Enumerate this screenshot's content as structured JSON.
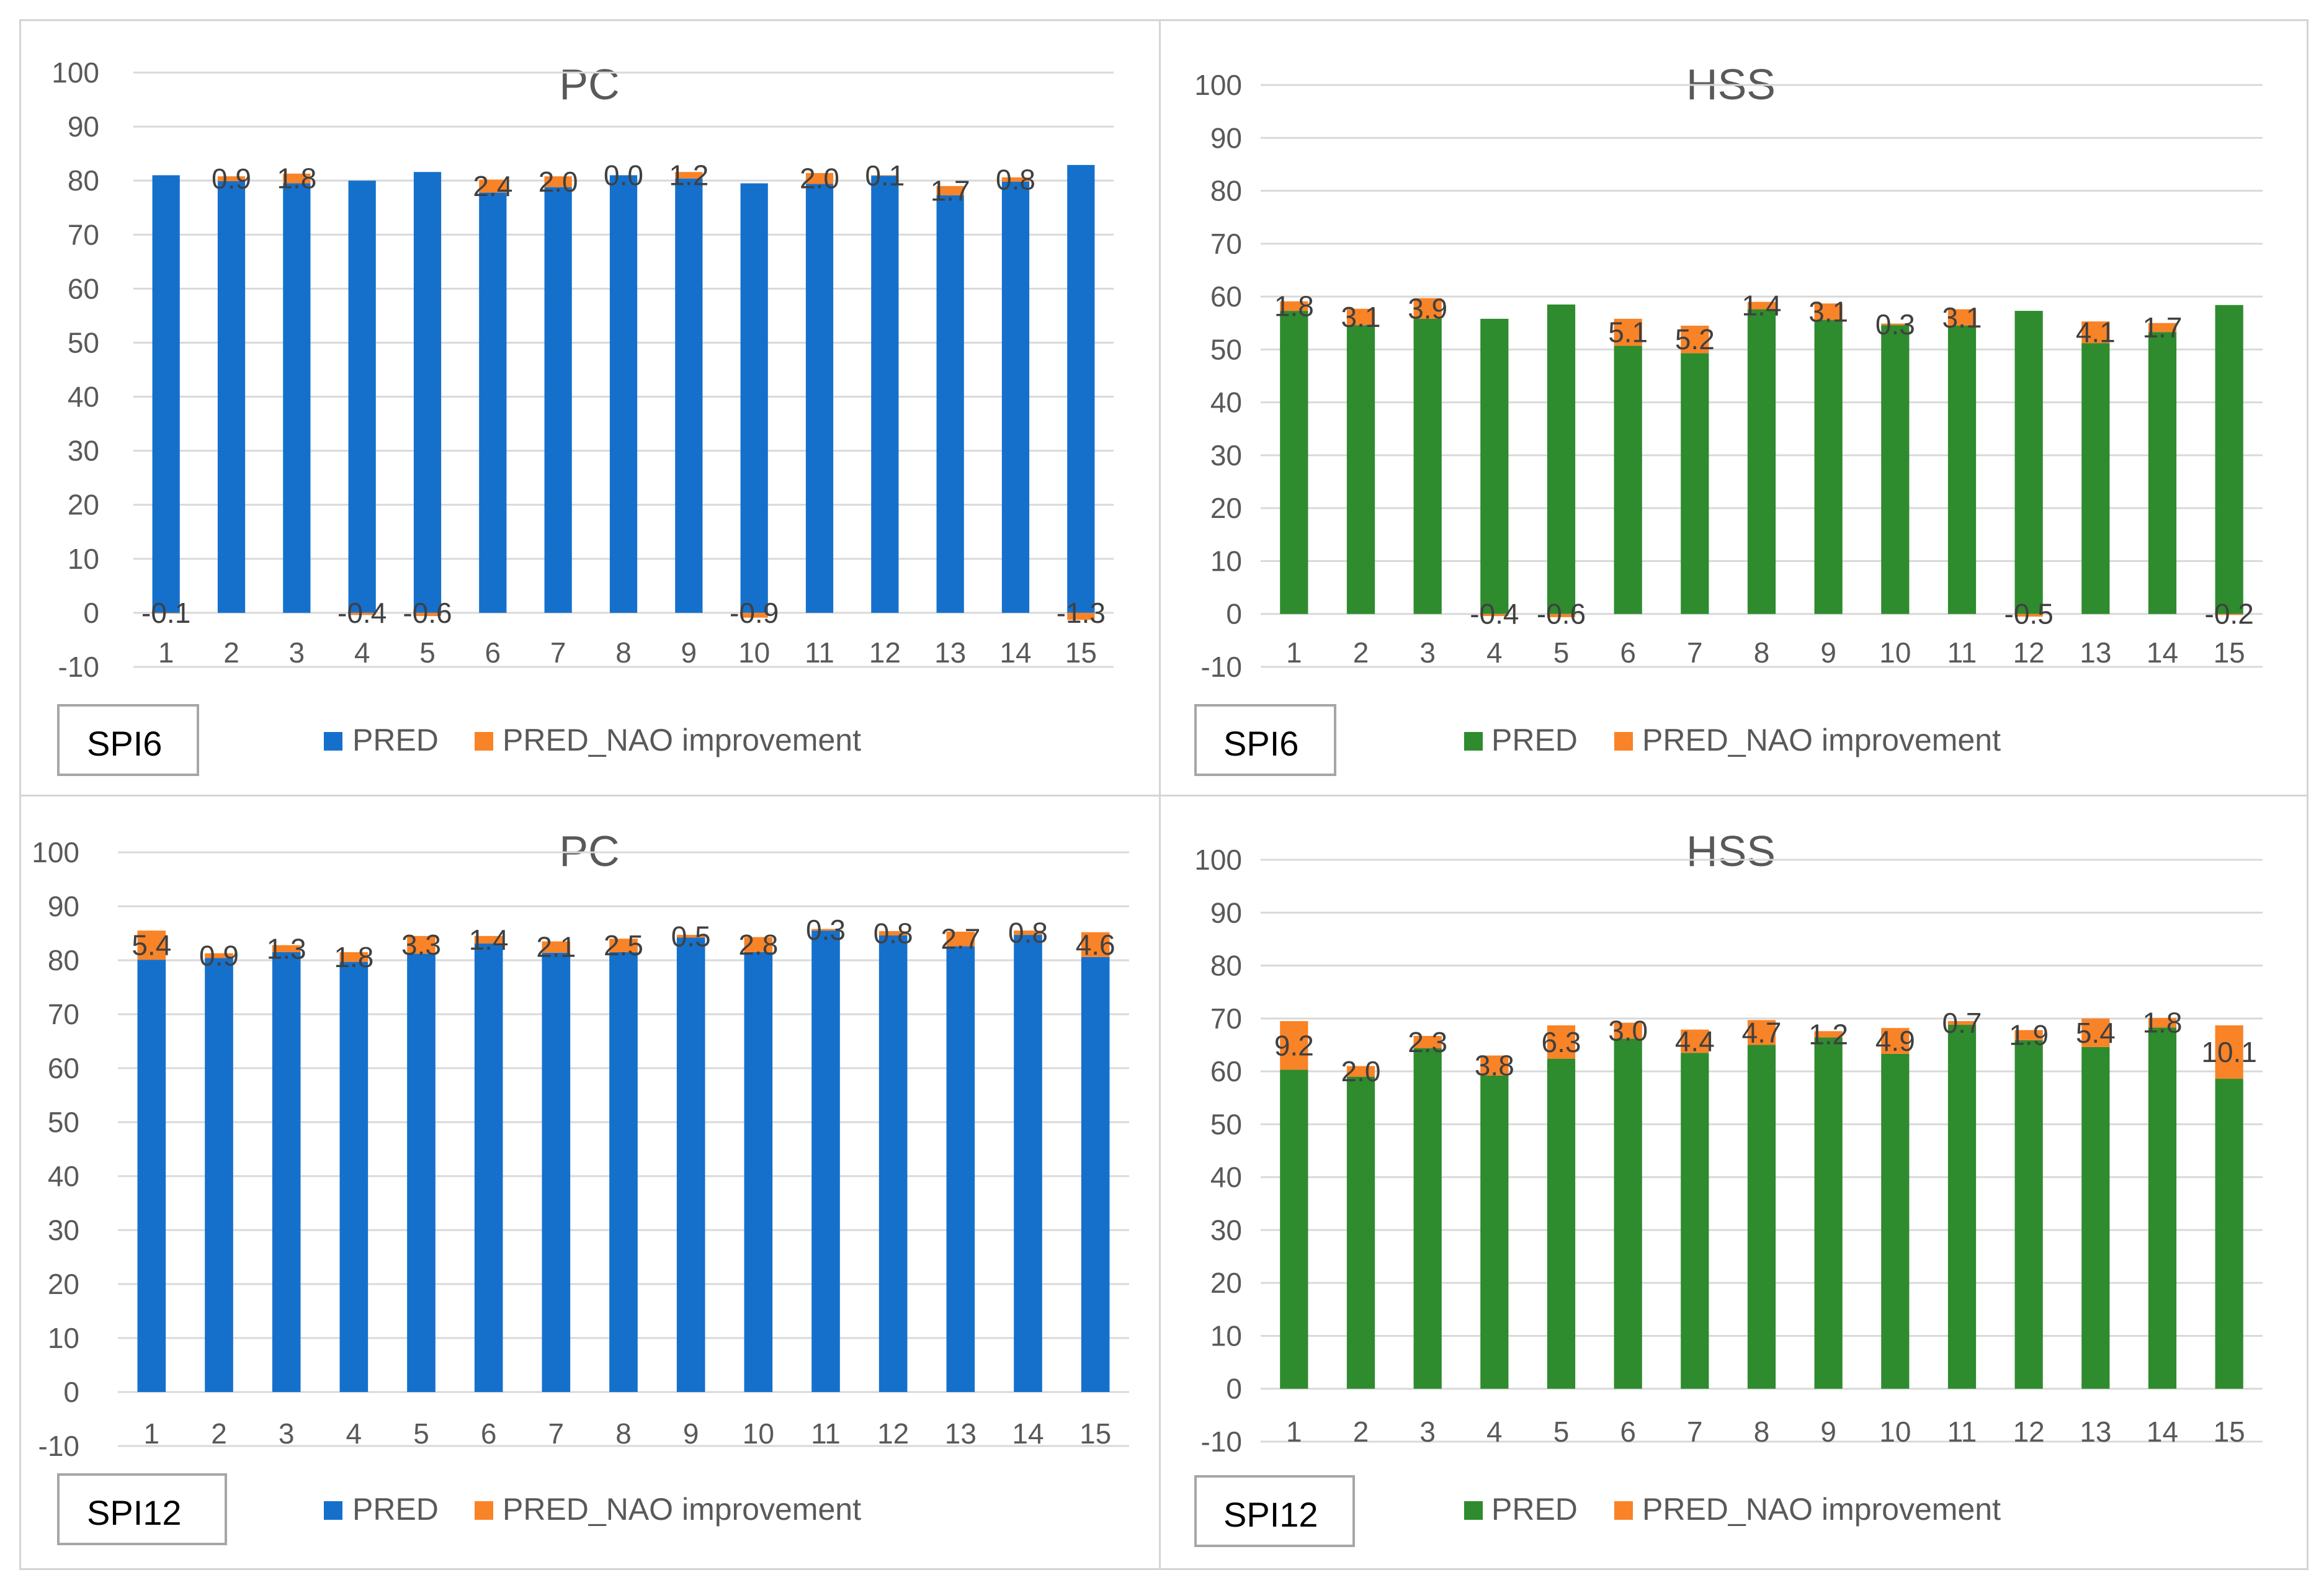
{
  "colors": {
    "pred_blue": "#1570cc",
    "pred_green": "#2e8b2e",
    "improvement": "#f98327",
    "grid": "#d9d9d9"
  },
  "chart_data": [
    {
      "type": "bar",
      "stacked": true,
      "title": "PC",
      "tag": "SPI6",
      "categories": [
        "1",
        "2",
        "3",
        "4",
        "5",
        "6",
        "7",
        "8",
        "9",
        "10",
        "11",
        "12",
        "13",
        "14",
        "15"
      ],
      "ylim": [
        -10,
        100
      ],
      "yticks": [
        -10,
        0,
        10,
        20,
        30,
        40,
        50,
        60,
        70,
        80,
        90,
        100
      ],
      "series": [
        {
          "name": "PRED",
          "color": "#1570cc",
          "values": [
            81,
            79.9,
            79.5,
            80,
            81.6,
            77.8,
            78.8,
            81,
            80.4,
            79.5,
            79.4,
            80.9,
            77.3,
            79.8,
            82.9
          ]
        },
        {
          "name": "PRED_NAO improvement",
          "color": "#f98327",
          "values": [
            -0.1,
            0.9,
            1.8,
            -0.4,
            -0.6,
            2.4,
            2.0,
            0.0,
            1.2,
            -0.9,
            2.0,
            0.1,
            1.7,
            0.8,
            -1.3
          ],
          "labels": [
            "-0.1",
            "0.9",
            "1.8",
            "-0.4",
            "-0.6",
            "2.4",
            "2.0",
            "0.0",
            "1.2",
            "-0.9",
            "2.0",
            "0.1",
            "1.7",
            "0.8",
            "-1.3"
          ]
        }
      ],
      "legend": [
        "PRED",
        "PRED_NAO improvement"
      ],
      "legend_position": "bottom"
    },
    {
      "type": "bar",
      "stacked": true,
      "title": "HSS",
      "tag": "SPI6",
      "categories": [
        "1",
        "2",
        "3",
        "4",
        "5",
        "6",
        "7",
        "8",
        "9",
        "10",
        "11",
        "12",
        "13",
        "14",
        "15"
      ],
      "ylim": [
        -10,
        100
      ],
      "yticks": [
        -10,
        0,
        10,
        20,
        30,
        40,
        50,
        60,
        70,
        80,
        90,
        100
      ],
      "series": [
        {
          "name": "PRED",
          "color": "#2e8b2e",
          "values": [
            57.3,
            54.6,
            55.8,
            55.8,
            58.5,
            50.7,
            49.3,
            57.6,
            55.6,
            54.6,
            54.5,
            57.3,
            51.2,
            53.3,
            58.4
          ]
        },
        {
          "name": "PRED_NAO improvement",
          "color": "#f98327",
          "values": [
            1.8,
            3.1,
            3.9,
            -0.4,
            -0.6,
            5.1,
            5.2,
            1.4,
            3.1,
            0.3,
            3.1,
            -0.5,
            4.1,
            1.7,
            -0.2
          ],
          "labels": [
            "1.8",
            "3.1",
            "3.9",
            "-0.4",
            "-0.6",
            "5.1",
            "5.2",
            "1.4",
            "3.1",
            "0.3",
            "3.1",
            "-0.5",
            "4.1",
            "1.7",
            "-0.2"
          ]
        }
      ],
      "legend": [
        "PRED",
        "PRED_NAO improvement"
      ],
      "legend_position": "bottom"
    },
    {
      "type": "bar",
      "stacked": true,
      "title": "PC",
      "tag": "SPI12",
      "categories": [
        "1",
        "2",
        "3",
        "4",
        "5",
        "6",
        "7",
        "8",
        "9",
        "10",
        "11",
        "12",
        "13",
        "14",
        "15"
      ],
      "ylim": [
        -10,
        100
      ],
      "yticks": [
        -10,
        0,
        10,
        20,
        30,
        40,
        50,
        60,
        70,
        80,
        90,
        100
      ],
      "series": [
        {
          "name": "PRED",
          "color": "#1570cc",
          "values": [
            80.1,
            80.4,
            81.5,
            79.7,
            81.2,
            83.1,
            81.4,
            81.5,
            84.2,
            81.5,
            85.5,
            84.6,
            82.6,
            84.7,
            80.6
          ]
        },
        {
          "name": "PRED_NAO improvement",
          "color": "#f98327",
          "values": [
            5.4,
            0.9,
            1.3,
            1.8,
            3.3,
            1.4,
            2.1,
            2.5,
            0.5,
            2.8,
            0.3,
            0.8,
            2.7,
            0.8,
            4.6
          ],
          "labels": [
            "5.4",
            "0.9",
            "1.3",
            "1.8",
            "3.3",
            "1.4",
            "2.1",
            "2.5",
            "0.5",
            "2.8",
            "0.3",
            "0.8",
            "2.7",
            "0.8",
            "4.6"
          ]
        }
      ],
      "legend": [
        "PRED",
        "PRED_NAO improvement"
      ],
      "legend_position": "bottom"
    },
    {
      "type": "bar",
      "stacked": true,
      "title": "HSS",
      "tag": "SPI12",
      "categories": [
        "1",
        "2",
        "3",
        "4",
        "5",
        "6",
        "7",
        "8",
        "9",
        "10",
        "11",
        "12",
        "13",
        "14",
        "15"
      ],
      "ylim": [
        -10,
        100
      ],
      "yticks": [
        -10,
        0,
        10,
        20,
        30,
        40,
        50,
        60,
        70,
        80,
        90,
        100
      ],
      "series": [
        {
          "name": "PRED",
          "color": "#2e8b2e",
          "values": [
            60.3,
            59.0,
            64.4,
            59.2,
            62.4,
            66.2,
            63.5,
            65.0,
            66.4,
            63.3,
            68.8,
            65.9,
            64.6,
            68.3,
            58.6
          ]
        },
        {
          "name": "PRED_NAO improvement",
          "color": "#f98327",
          "values": [
            9.2,
            2.0,
            2.3,
            3.8,
            6.3,
            3.0,
            4.4,
            4.7,
            1.2,
            4.9,
            0.7,
            1.9,
            5.4,
            1.8,
            10.1
          ],
          "labels": [
            "9.2",
            "2.0",
            "2.3",
            "3.8",
            "6.3",
            "3.0",
            "4.4",
            "4.7",
            "1.2",
            "4.9",
            "0.7",
            "1.9",
            "5.4",
            "1.8",
            "10.1"
          ]
        }
      ],
      "legend": [
        "PRED",
        "PRED_NAO improvement"
      ],
      "legend_position": "bottom"
    }
  ]
}
